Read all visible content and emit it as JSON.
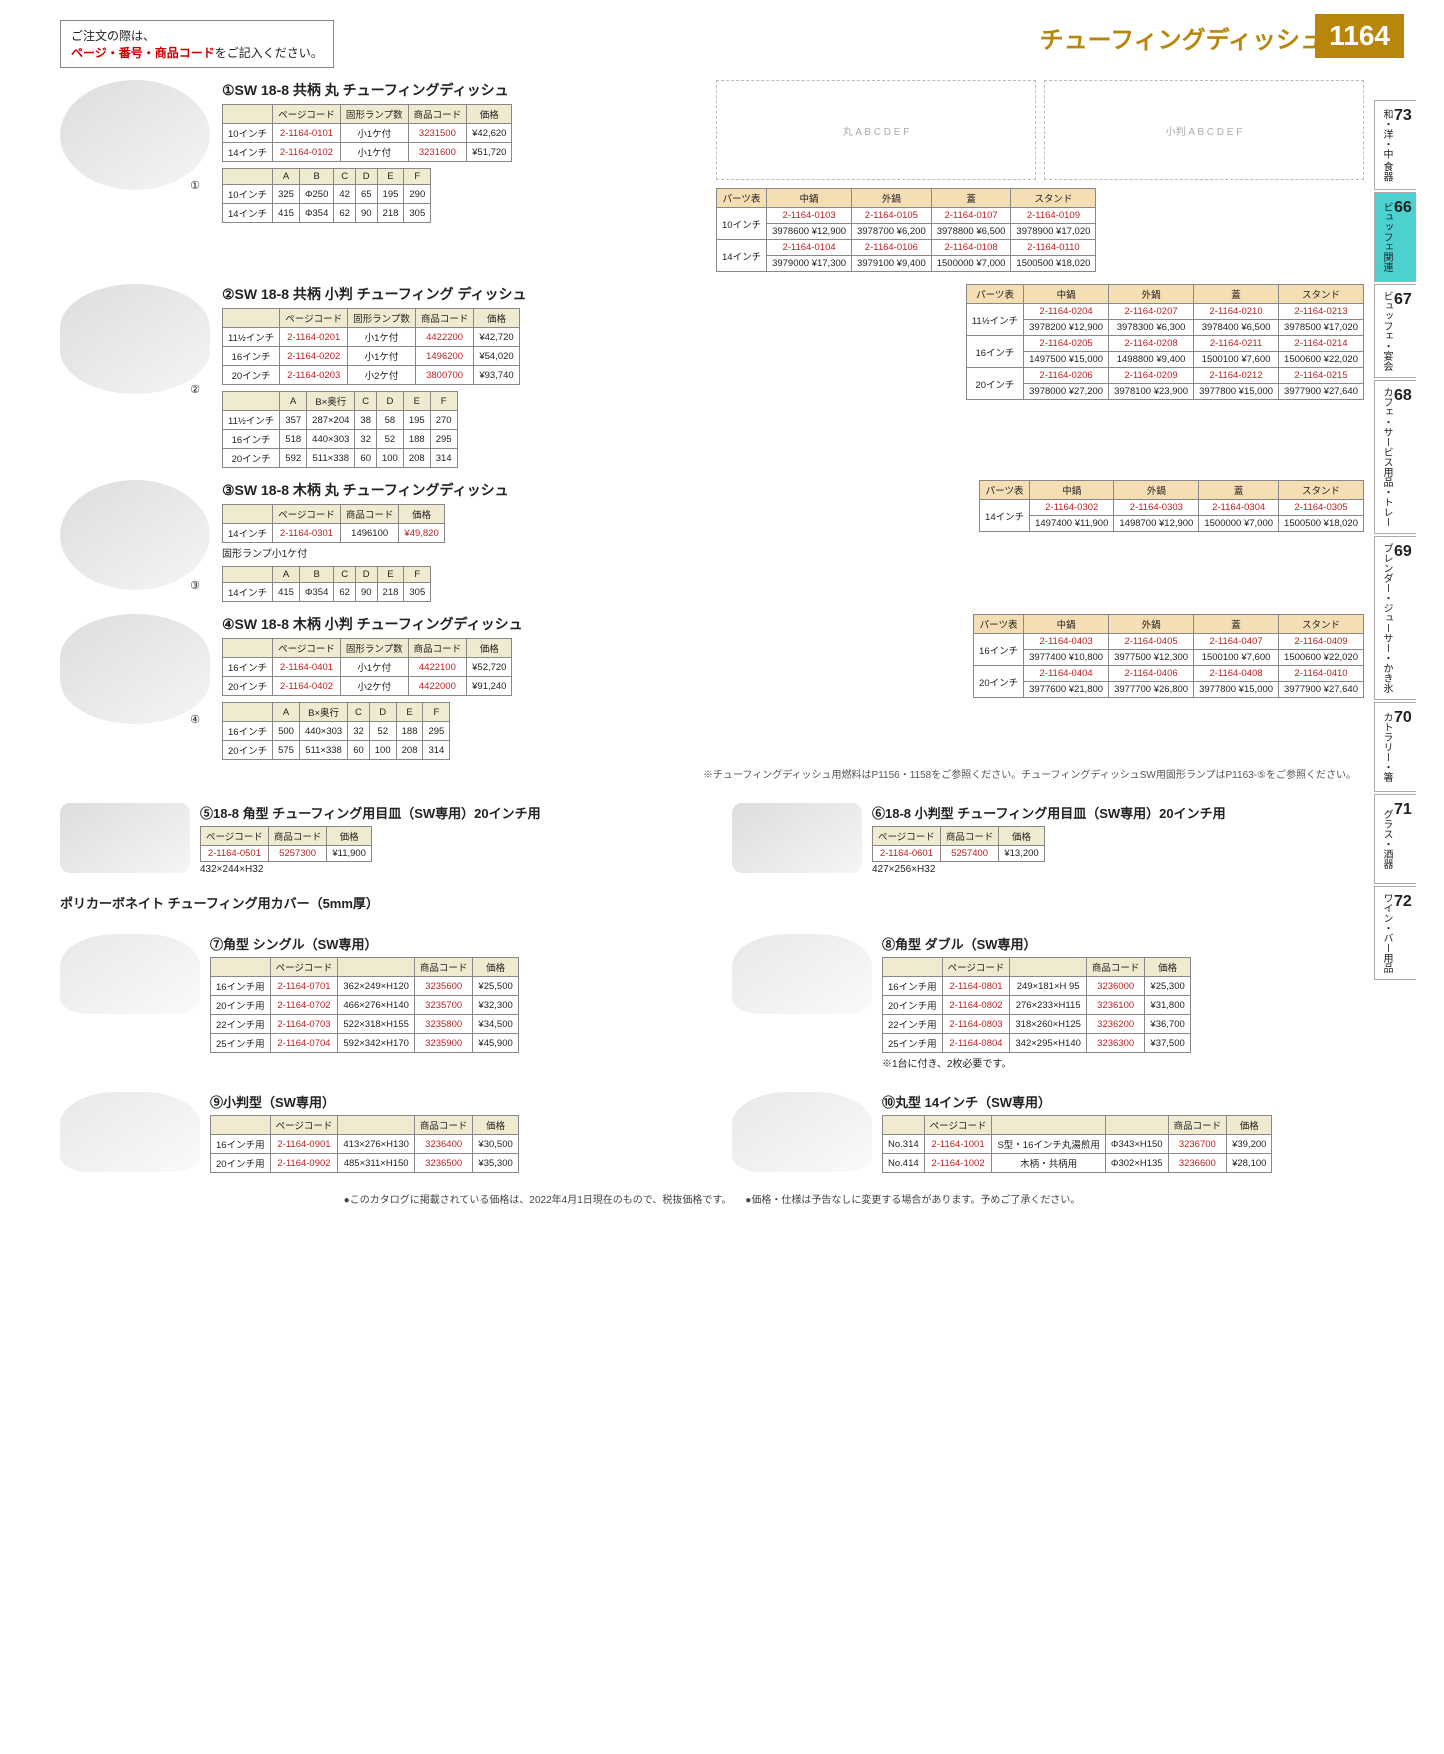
{
  "header": {
    "order_note_plain": "ご注文の際は、",
    "order_note_em": "ページ・番号・商品コード",
    "order_note_tail": "をご記入ください。",
    "category_title": "チューフィングディッシュ",
    "page_number": "1164"
  },
  "side_tabs": [
    {
      "num": "73",
      "label": "和・洋・中 食器",
      "active": false
    },
    {
      "num": "66",
      "label": "ビュッフェ関連",
      "active": true
    },
    {
      "num": "67",
      "label": "ビュッフェ・宴会",
      "active": false
    },
    {
      "num": "68",
      "label": "カフェ・サービス用品・トレー",
      "active": false
    },
    {
      "num": "69",
      "label": "ブレンダー・ジューサー・かき氷",
      "active": false
    },
    {
      "num": "70",
      "label": "カトラリー・箸",
      "active": false
    },
    {
      "num": "71",
      "label": "グラス・酒器",
      "active": false
    },
    {
      "num": "72",
      "label": "ワイン・バー用品",
      "active": false
    }
  ],
  "diagram_labels": {
    "round": "丸",
    "oval": "小判",
    "dims": "A B C D E F"
  },
  "products": [
    {
      "num": "①",
      "title": "SW 18-8 共柄 丸 チューフィングディッシュ",
      "main_cols": [
        "",
        "ページコード",
        "固形ランプ数",
        "商品コード",
        "価格"
      ],
      "main_rows": [
        [
          "10インチ",
          "2-1164-0101",
          "小1ケ付",
          "3231500",
          "¥42,620"
        ],
        [
          "14インチ",
          "2-1164-0102",
          "小1ケ付",
          "3231600",
          "¥51,720"
        ]
      ],
      "dim_cols": [
        "",
        "A",
        "B",
        "C",
        "D",
        "E",
        "F"
      ],
      "dim_rows": [
        [
          "10インチ",
          "325",
          "Φ250",
          "42",
          "65",
          "195",
          "290"
        ],
        [
          "14インチ",
          "415",
          "Φ354",
          "62",
          "90",
          "218",
          "305"
        ]
      ],
      "parts_sizes": [
        "10インチ",
        "14インチ"
      ],
      "parts_cols": [
        "パーツ表",
        "中鍋",
        "外鍋",
        "蓋",
        "スタンド"
      ],
      "parts": [
        [
          {
            "pc": "2-1164-0103",
            "cc": "3978600",
            "pr": "¥12,900"
          },
          {
            "pc": "2-1164-0105",
            "cc": "3978700",
            "pr": "¥6,200"
          },
          {
            "pc": "2-1164-0107",
            "cc": "3978800",
            "pr": "¥6,500"
          },
          {
            "pc": "2-1164-0109",
            "cc": "3978900",
            "pr": "¥17,020"
          }
        ],
        [
          {
            "pc": "2-1164-0104",
            "cc": "3979000",
            "pr": "¥17,300"
          },
          {
            "pc": "2-1164-0106",
            "cc": "3979100",
            "pr": "¥9,400"
          },
          {
            "pc": "2-1164-0108",
            "cc": "1500000",
            "pr": "¥7,000"
          },
          {
            "pc": "2-1164-0110",
            "cc": "1500500",
            "pr": "¥18,020"
          }
        ]
      ]
    },
    {
      "num": "②",
      "title": "SW 18-8 共柄 小判 チューフィング ディッシュ",
      "main_cols": [
        "",
        "ページコード",
        "固形ランプ数",
        "商品コード",
        "価格"
      ],
      "main_rows": [
        [
          "11½インチ",
          "2-1164-0201",
          "小1ケ付",
          "4422200",
          "¥42,720"
        ],
        [
          "16インチ",
          "2-1164-0202",
          "小1ケ付",
          "1496200",
          "¥54,020"
        ],
        [
          "20インチ",
          "2-1164-0203",
          "小2ケ付",
          "3800700",
          "¥93,740"
        ]
      ],
      "dim_cols": [
        "",
        "A",
        "B×奥行",
        "C",
        "D",
        "E",
        "F"
      ],
      "dim_rows": [
        [
          "11½インチ",
          "357",
          "287×204",
          "38",
          "58",
          "195",
          "270"
        ],
        [
          "16インチ",
          "518",
          "440×303",
          "32",
          "52",
          "188",
          "295"
        ],
        [
          "20インチ",
          "592",
          "511×338",
          "60",
          "100",
          "208",
          "314"
        ]
      ],
      "parts_sizes": [
        "11½インチ",
        "16インチ",
        "20インチ"
      ],
      "parts_cols": [
        "パーツ表",
        "中鍋",
        "外鍋",
        "蓋",
        "スタンド"
      ],
      "parts": [
        [
          {
            "pc": "2-1164-0204",
            "cc": "3978200",
            "pr": "¥12,900"
          },
          {
            "pc": "2-1164-0207",
            "cc": "3978300",
            "pr": "¥6,300"
          },
          {
            "pc": "2-1164-0210",
            "cc": "3978400",
            "pr": "¥6,500"
          },
          {
            "pc": "2-1164-0213",
            "cc": "3978500",
            "pr": "¥17,020"
          }
        ],
        [
          {
            "pc": "2-1164-0205",
            "cc": "1497500",
            "pr": "¥15,000"
          },
          {
            "pc": "2-1164-0208",
            "cc": "1498800",
            "pr": "¥9,400"
          },
          {
            "pc": "2-1164-0211",
            "cc": "1500100",
            "pr": "¥7,600"
          },
          {
            "pc": "2-1164-0214",
            "cc": "1500600",
            "pr": "¥22,020"
          }
        ],
        [
          {
            "pc": "2-1164-0206",
            "cc": "3978000",
            "pr": "¥27,200"
          },
          {
            "pc": "2-1164-0209",
            "cc": "3978100",
            "pr": "¥23,900"
          },
          {
            "pc": "2-1164-0212",
            "cc": "3977800",
            "pr": "¥15,000"
          },
          {
            "pc": "2-1164-0215",
            "cc": "3977900",
            "pr": "¥27,640"
          }
        ]
      ]
    },
    {
      "num": "③",
      "title": "SW 18-8 木柄 丸 チューフィングディッシュ",
      "main_cols": [
        "",
        "ページコード",
        "商品コード",
        "価格"
      ],
      "main_rows": [
        [
          "14インチ",
          "2-1164-0301",
          "1496100",
          "¥49,820"
        ]
      ],
      "sub_note": "固形ランプ小1ケ付",
      "dim_cols": [
        "",
        "A",
        "B",
        "C",
        "D",
        "E",
        "F"
      ],
      "dim_rows": [
        [
          "14インチ",
          "415",
          "Φ354",
          "62",
          "90",
          "218",
          "305"
        ]
      ],
      "parts_sizes": [
        "14インチ"
      ],
      "parts_cols": [
        "パーツ表",
        "中鍋",
        "外鍋",
        "蓋",
        "スタンド"
      ],
      "parts": [
        [
          {
            "pc": "2-1164-0302",
            "cc": "1497400",
            "pr": "¥11,900"
          },
          {
            "pc": "2-1164-0303",
            "cc": "1498700",
            "pr": "¥12,900"
          },
          {
            "pc": "2-1164-0304",
            "cc": "1500000",
            "pr": "¥7,000"
          },
          {
            "pc": "2-1164-0305",
            "cc": "1500500",
            "pr": "¥18,020"
          }
        ]
      ]
    },
    {
      "num": "④",
      "title": "SW 18-8 木柄 小判 チューフィングディッシュ",
      "main_cols": [
        "",
        "ページコード",
        "固形ランプ数",
        "商品コード",
        "価格"
      ],
      "main_rows": [
        [
          "16インチ",
          "2-1164-0401",
          "小1ケ付",
          "4422100",
          "¥52,720"
        ],
        [
          "20インチ",
          "2-1164-0402",
          "小2ケ付",
          "4422000",
          "¥91,240"
        ]
      ],
      "dim_cols": [
        "",
        "A",
        "B×奥行",
        "C",
        "D",
        "E",
        "F"
      ],
      "dim_rows": [
        [
          "16インチ",
          "500",
          "440×303",
          "32",
          "52",
          "188",
          "295"
        ],
        [
          "20インチ",
          "575",
          "511×338",
          "60",
          "100",
          "208",
          "314"
        ]
      ],
      "parts_sizes": [
        "16インチ",
        "20インチ"
      ],
      "parts_cols": [
        "パーツ表",
        "中鍋",
        "外鍋",
        "蓋",
        "スタンド"
      ],
      "parts": [
        [
          {
            "pc": "2-1164-0403",
            "cc": "3977400",
            "pr": "¥10,800"
          },
          {
            "pc": "2-1164-0405",
            "cc": "3977500",
            "pr": "¥12,300"
          },
          {
            "pc": "2-1164-0407",
            "cc": "1500100",
            "pr": "¥7,600"
          },
          {
            "pc": "2-1164-0409",
            "cc": "1500600",
            "pr": "¥22,020"
          }
        ],
        [
          {
            "pc": "2-1164-0404",
            "cc": "3977600",
            "pr": "¥21,800"
          },
          {
            "pc": "2-1164-0406",
            "cc": "3977700",
            "pr": "¥26,800"
          },
          {
            "pc": "2-1164-0408",
            "cc": "3977800",
            "pr": "¥15,000"
          },
          {
            "pc": "2-1164-0410",
            "cc": "3977900",
            "pr": "¥27,640"
          }
        ]
      ]
    }
  ],
  "ref_note": "※チューフィングディッシュ用燃料はP1156・1158をご参照ください。チューフィングディッシュSW用固形ランプはP1163-⑤をご参照ください。",
  "plates": [
    {
      "num": "⑤",
      "title": "18-8 角型 チューフィング用目皿（SW専用）20インチ用",
      "cols": [
        "ページコード",
        "商品コード",
        "価格"
      ],
      "row": [
        "2-1164-0501",
        "5257300",
        "¥11,900"
      ],
      "dim": "432×244×H32"
    },
    {
      "num": "⑥",
      "title": "18-8 小判型 チューフィング用目皿（SW専用）20インチ用",
      "cols": [
        "ページコード",
        "商品コード",
        "価格"
      ],
      "row": [
        "2-1164-0601",
        "5257400",
        "¥13,200"
      ],
      "dim": "427×256×H32"
    }
  ],
  "cover_heading": "ポリカーボネイト チューフィング用カバー（5mm厚）",
  "covers": [
    {
      "num": "⑦",
      "title": "角型 シングル（SW専用）",
      "cols": [
        "",
        "ページコード",
        "",
        "商品コード",
        "価格"
      ],
      "rows": [
        [
          "16インチ用",
          "2-1164-0701",
          "362×249×H120",
          "3235600",
          "¥25,500"
        ],
        [
          "20インチ用",
          "2-1164-0702",
          "466×276×H140",
          "3235700",
          "¥32,300"
        ],
        [
          "22インチ用",
          "2-1164-0703",
          "522×318×H155",
          "3235800",
          "¥34,500"
        ],
        [
          "25インチ用",
          "2-1164-0704",
          "592×342×H170",
          "3235900",
          "¥45,900"
        ]
      ]
    },
    {
      "num": "⑧",
      "title": "角型 ダブル（SW専用）",
      "cols": [
        "",
        "ページコード",
        "",
        "商品コード",
        "価格"
      ],
      "rows": [
        [
          "16インチ用",
          "2-1164-0801",
          "249×181×H 95",
          "3236000",
          "¥25,300"
        ],
        [
          "20インチ用",
          "2-1164-0802",
          "276×233×H115",
          "3236100",
          "¥31,800"
        ],
        [
          "22インチ用",
          "2-1164-0803",
          "318×260×H125",
          "3236200",
          "¥36,700"
        ],
        [
          "25インチ用",
          "2-1164-0804",
          "342×295×H140",
          "3236300",
          "¥37,500"
        ]
      ],
      "note": "※1台に付き、2枚必要です。"
    },
    {
      "num": "⑨",
      "title": "小判型（SW専用）",
      "cols": [
        "",
        "ページコード",
        "",
        "商品コード",
        "価格"
      ],
      "rows": [
        [
          "16インチ用",
          "2-1164-0901",
          "413×276×H130",
          "3236400",
          "¥30,500"
        ],
        [
          "20インチ用",
          "2-1164-0902",
          "485×311×H150",
          "3236500",
          "¥35,300"
        ]
      ]
    },
    {
      "num": "⑩",
      "title": "丸型 14インチ（SW専用）",
      "cols": [
        "",
        "ページコード",
        "",
        "",
        "商品コード",
        "価格"
      ],
      "rows": [
        [
          "No.314",
          "2-1164-1001",
          "S型・16インチ丸湯煎用",
          "Φ343×H150",
          "3236700",
          "¥39,200"
        ],
        [
          "No.414",
          "2-1164-1002",
          "木柄・共柄用",
          "Φ302×H135",
          "3236600",
          "¥28,100"
        ]
      ]
    }
  ],
  "footer": {
    "left": "●このカタログに掲載されている価格は、2022年4月1日現在のもので、税抜価格です。",
    "right": "●価格・仕様は予告なしに変更する場合があります。予めご了承ください。"
  }
}
